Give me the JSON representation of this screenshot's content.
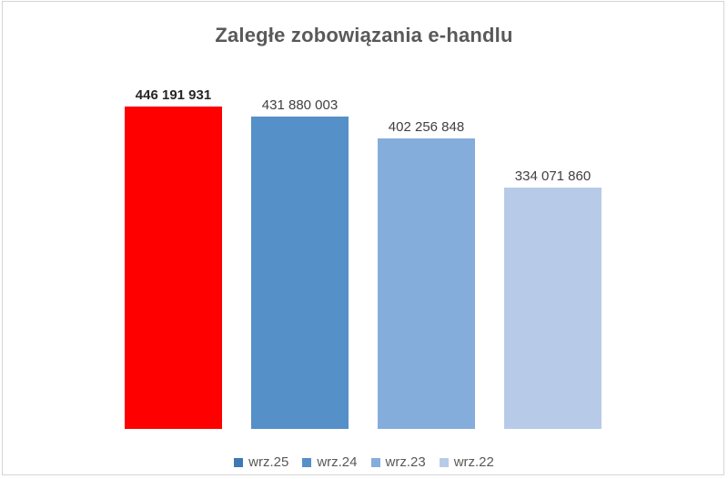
{
  "title": "Zaległe zobowiązania e-handlu",
  "chart_data": {
    "type": "bar",
    "title": "Zaległe zobowiązania e-handlu",
    "categories": [
      "wrz.25",
      "wrz.24",
      "wrz.23",
      "wrz.22"
    ],
    "values": [
      446191931,
      431880003,
      402256848,
      334071860
    ],
    "value_labels": [
      "446 191 931",
      "431 880 003",
      "402 256 848",
      "334 071 860"
    ],
    "bar_colors": [
      "#fe0000",
      "#5590c8",
      "#84addc",
      "#b7cbe8"
    ],
    "legend_colors": [
      "#3e79b4",
      "#5590c8",
      "#84addc",
      "#b7cbe8"
    ],
    "highlight_index": 0,
    "ylim": [
      0,
      446191931
    ],
    "xlabel": "",
    "ylabel": "",
    "grid": false,
    "axes_visible": false,
    "legend_position": "bottom"
  },
  "colors": {
    "background": "#ffffff",
    "frame_border": "#d5d5d5",
    "title_text": "#595959",
    "label_text": "#404040",
    "highlight_label_text": "#262626",
    "legend_text": "#595959"
  }
}
